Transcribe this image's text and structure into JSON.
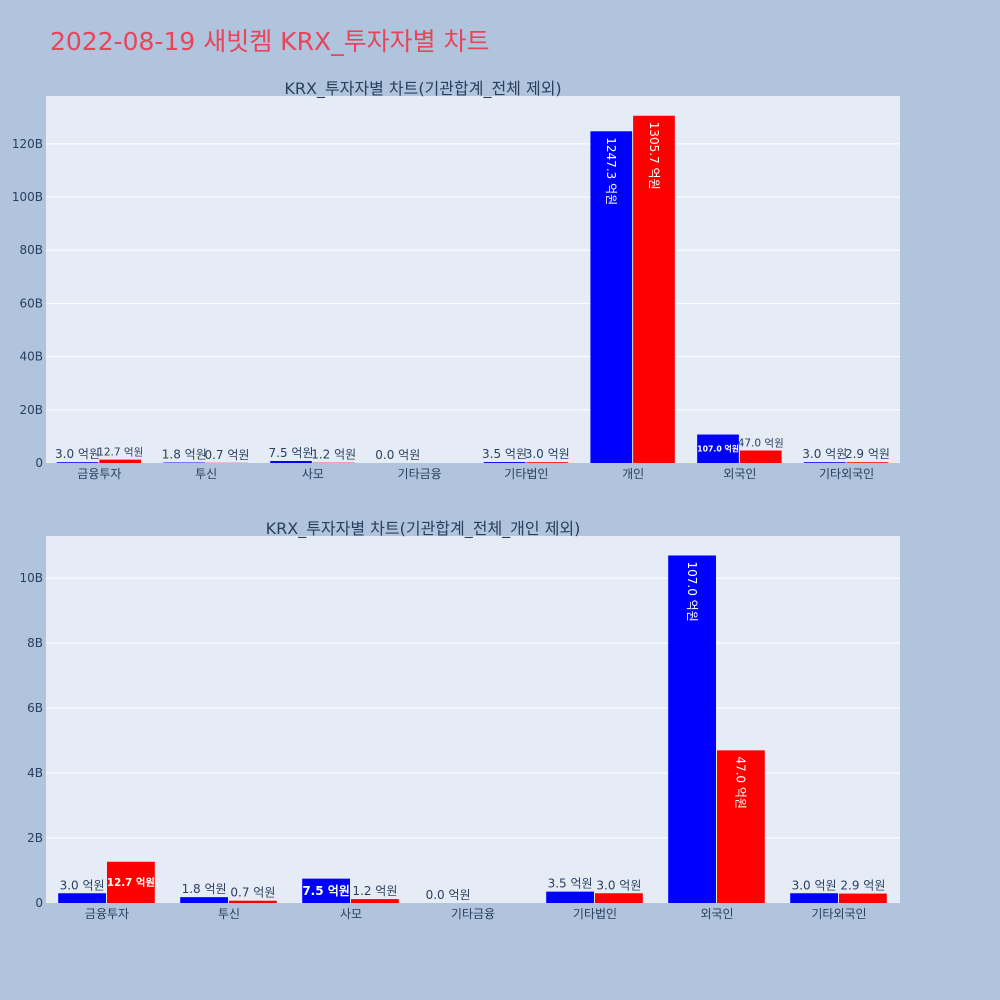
{
  "page": {
    "title": "2022-08-19 새빗켐 KRX_투자자별 차트"
  },
  "colors": {
    "background": "#b0c4de",
    "plot_background": "#e5ecf6",
    "title": "#e8455a",
    "text": "#2a3f5f",
    "series_blue": "#0000ff",
    "series_red": "#ff0000"
  },
  "chart_data": [
    {
      "type": "bar",
      "title": "KRX_투자자별 차트(기관합계_전체 제외)",
      "categories": [
        "금융투자",
        "투신",
        "사모",
        "기타금융",
        "기타법인",
        "개인",
        "외국인",
        "기타외국인"
      ],
      "series": [
        {
          "color": "#0000ff",
          "values": [
            300000000,
            180000000,
            750000000,
            0,
            350000000,
            124730000000,
            10700000000,
            300000000
          ],
          "labels": [
            "3.0 억원",
            "1.8 억원",
            "7.5 억원",
            "0.0 억원",
            "3.5 억원",
            "1247.3 억원",
            "107.0 억원",
            "3.0 억원"
          ]
        },
        {
          "color": "#ff0000",
          "values": [
            1270000000,
            70000000,
            120000000,
            null,
            300000000,
            130570000000,
            4700000000,
            290000000
          ],
          "labels": [
            "12.7 억원",
            "0.7 억원",
            "1.2 억원",
            "",
            "3.0 억원",
            "1305.7 억원",
            "47.0 억원",
            "2.9 억원"
          ]
        }
      ],
      "yaxis": {
        "range": [
          0,
          138000000000
        ],
        "ticks": [
          0,
          20000000000,
          40000000000,
          60000000000,
          80000000000,
          100000000000,
          120000000000
        ],
        "tick_labels": [
          "0",
          "20B",
          "40B",
          "60B",
          "80B",
          "100B",
          "120B"
        ]
      },
      "grid": true,
      "legend": "none"
    },
    {
      "type": "bar",
      "title": "KRX_투자자별 차트(기관합계_전체_개인 제외)",
      "categories": [
        "금융투자",
        "투신",
        "사모",
        "기타금융",
        "기타법인",
        "외국인",
        "기타외국인"
      ],
      "series": [
        {
          "color": "#0000ff",
          "values": [
            300000000,
            180000000,
            750000000,
            0,
            350000000,
            10700000000,
            300000000
          ],
          "labels": [
            "3.0 억원",
            "1.8 억원",
            "7.5 억원",
            "0.0 억원",
            "3.5 억원",
            "107.0 억원",
            "3.0 억원"
          ]
        },
        {
          "color": "#ff0000",
          "values": [
            1270000000,
            70000000,
            120000000,
            null,
            300000000,
            4700000000,
            290000000
          ],
          "labels": [
            "12.7 억원",
            "0.7 억원",
            "1.2 억원",
            "",
            "3.0 억원",
            "47.0 억원",
            "2.9 억원"
          ]
        }
      ],
      "yaxis": {
        "range": [
          0,
          11300000000
        ],
        "ticks": [
          0,
          2000000000,
          4000000000,
          6000000000,
          8000000000,
          10000000000
        ],
        "tick_labels": [
          "0",
          "2B",
          "4B",
          "6B",
          "8B",
          "10B"
        ]
      },
      "grid": true,
      "legend": "none"
    }
  ]
}
